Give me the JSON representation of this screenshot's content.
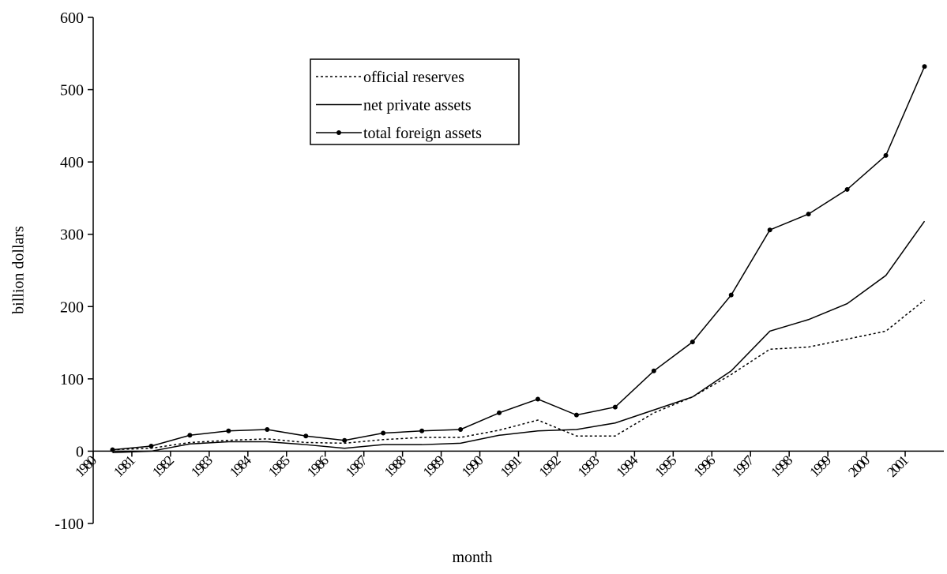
{
  "chart_data": {
    "type": "line",
    "x_label": "month",
    "y_label": "billion dollars",
    "categories": [
      "1980",
      "1981",
      "1982",
      "1983",
      "1984",
      "1985",
      "1986",
      "1987",
      "1988",
      "1989",
      "1990",
      "1991",
      "1992",
      "1993",
      "1994",
      "1995",
      "1996",
      "1997",
      "1998",
      "1999",
      "2000",
      "2001"
    ],
    "series": [
      {
        "name": "official reserves",
        "color": "#000000",
        "line_style": "dashed",
        "marker": false,
        "values": [
          2,
          4,
          12,
          15,
          17,
          12,
          11,
          16,
          19,
          19,
          29,
          43,
          21,
          21,
          53,
          75,
          106,
          141,
          144,
          155,
          166,
          209
        ]
      },
      {
        "name": "net private assets",
        "color": "#000000",
        "line_style": "solid",
        "marker": false,
        "values": [
          -2,
          0,
          10,
          13,
          13,
          9,
          4,
          9,
          9,
          11,
          22,
          28,
          30,
          39,
          57,
          75,
          111,
          166,
          182,
          204,
          243,
          318
        ]
      },
      {
        "name": "total foreign assets",
        "color": "#000000",
        "line_style": "solid",
        "marker": true,
        "values": [
          2,
          7,
          22,
          28,
          30,
          21,
          15,
          25,
          28,
          30,
          53,
          72,
          50,
          61,
          111,
          151,
          216,
          306,
          328,
          362,
          409,
          532
        ]
      }
    ],
    "ylim": [
      -100,
      600
    ],
    "yticks": [
      -100,
      0,
      100,
      200,
      300,
      400,
      500,
      600
    ],
    "grid": false
  }
}
